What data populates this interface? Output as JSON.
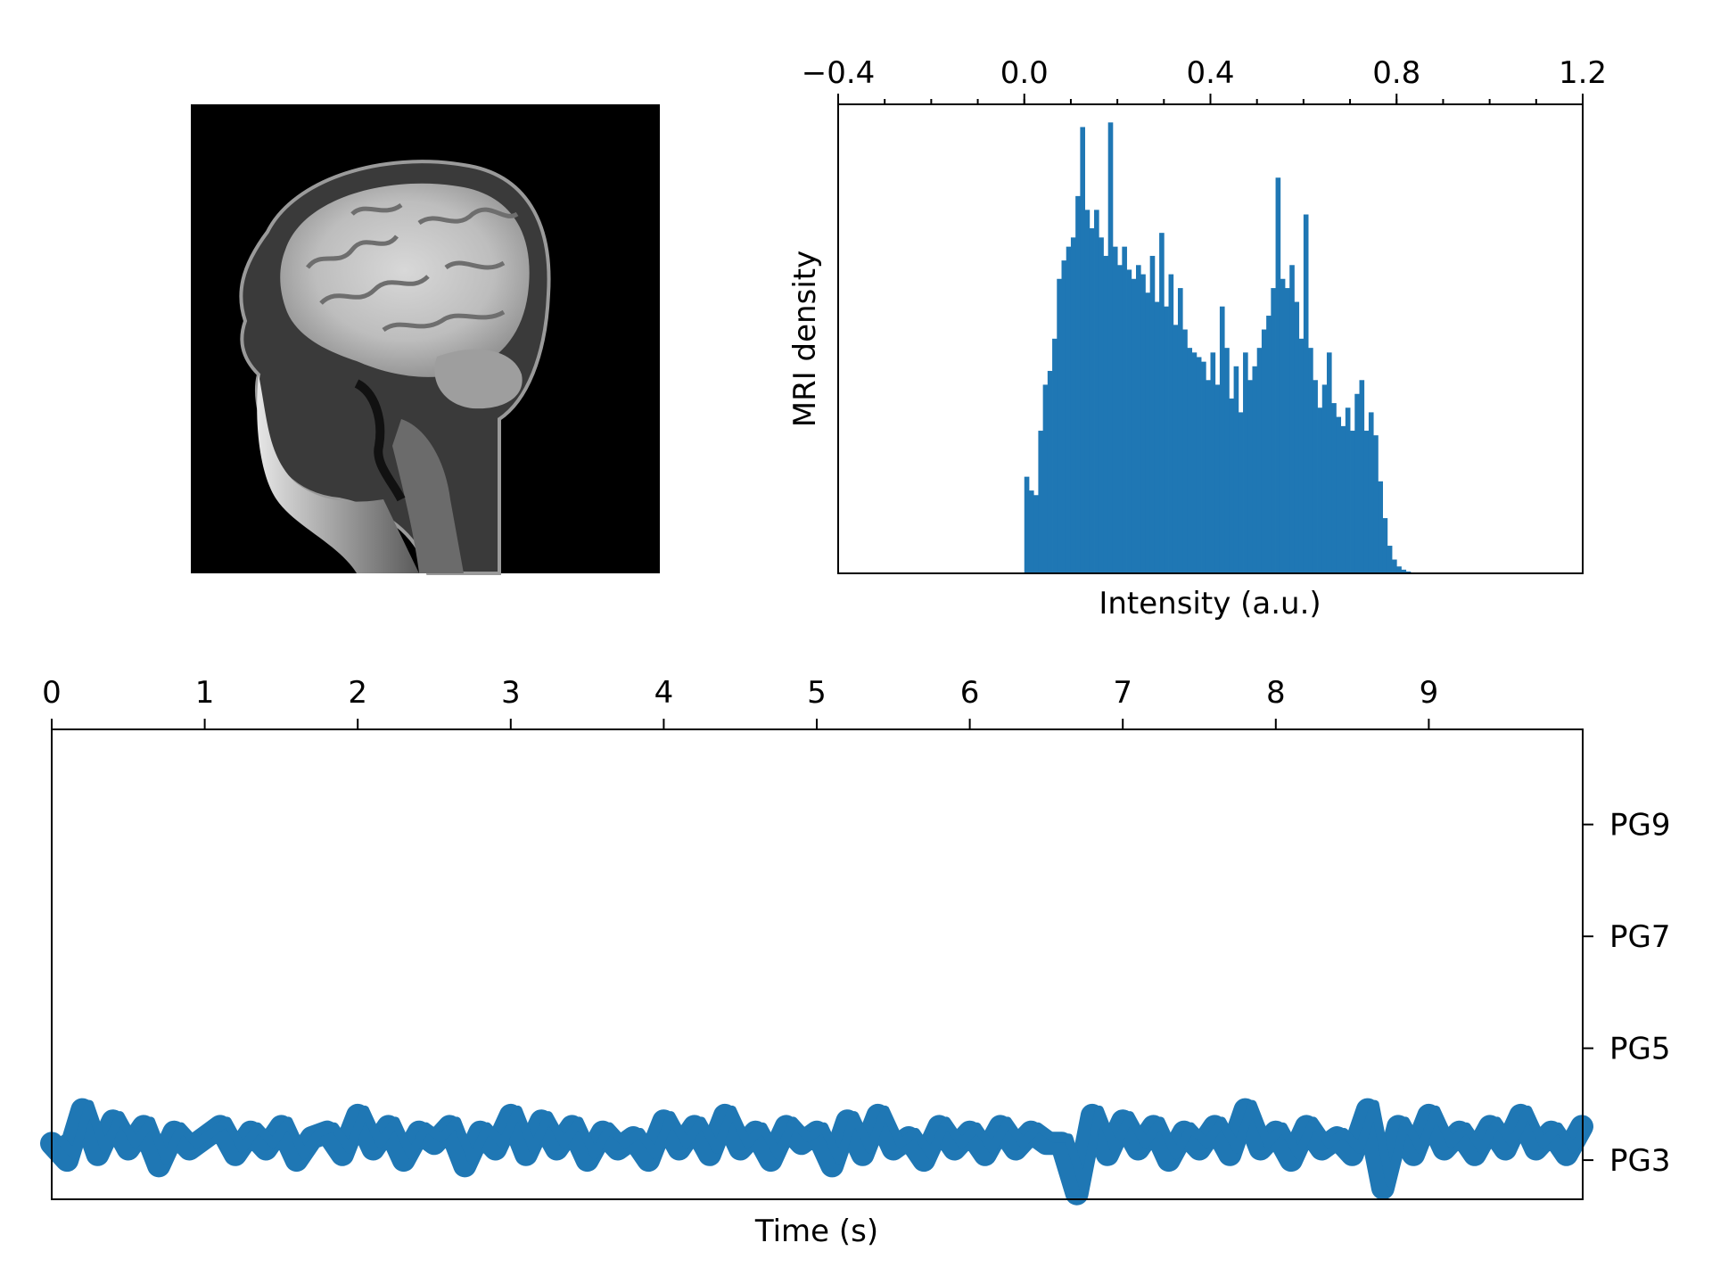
{
  "chart_data": [
    {
      "panel": "mri-image",
      "type": "image",
      "image": "sagittal-head-mri",
      "colormap": "gray"
    },
    {
      "panel": "histogram",
      "type": "bar",
      "title": "",
      "xlabel": "Intensity (a.u.)",
      "ylabel": "MRI density",
      "xlim": [
        -0.4,
        1.2
      ],
      "x_axis_position": "top",
      "x_ticks": [
        -0.4,
        0.0,
        0.4,
        0.8,
        1.2
      ],
      "x_tick_labels": [
        "−0.4",
        "0.0",
        "0.4",
        "0.8",
        "1.2"
      ],
      "y_ticks_visible": false,
      "bin_width": 0.01,
      "x": [
        0.0,
        0.01,
        0.02,
        0.03,
        0.04,
        0.05,
        0.06,
        0.07,
        0.08,
        0.09,
        0.1,
        0.11,
        0.12,
        0.13,
        0.14,
        0.15,
        0.16,
        0.17,
        0.18,
        0.19,
        0.2,
        0.21,
        0.22,
        0.23,
        0.24,
        0.25,
        0.26,
        0.27,
        0.28,
        0.29,
        0.3,
        0.31,
        0.32,
        0.33,
        0.34,
        0.35,
        0.36,
        0.37,
        0.38,
        0.39,
        0.4,
        0.41,
        0.42,
        0.43,
        0.44,
        0.45,
        0.46,
        0.47,
        0.48,
        0.49,
        0.5,
        0.51,
        0.52,
        0.53,
        0.54,
        0.55,
        0.56,
        0.57,
        0.58,
        0.59,
        0.6,
        0.61,
        0.62,
        0.63,
        0.64,
        0.65,
        0.66,
        0.67,
        0.68,
        0.69,
        0.7,
        0.71,
        0.72,
        0.73,
        0.74,
        0.75,
        0.76,
        0.77,
        0.78,
        0.79,
        0.8,
        0.81,
        0.82,
        0.83
      ],
      "values": [
        0.21,
        0.18,
        0.17,
        0.31,
        0.41,
        0.44,
        0.51,
        0.64,
        0.68,
        0.71,
        0.73,
        0.82,
        0.97,
        0.79,
        0.75,
        0.79,
        0.73,
        0.69,
        0.98,
        0.71,
        0.67,
        0.71,
        0.66,
        0.64,
        0.67,
        0.65,
        0.61,
        0.69,
        0.59,
        0.74,
        0.58,
        0.65,
        0.54,
        0.62,
        0.53,
        0.49,
        0.48,
        0.47,
        0.46,
        0.42,
        0.48,
        0.41,
        0.58,
        0.49,
        0.38,
        0.45,
        0.35,
        0.48,
        0.42,
        0.45,
        0.49,
        0.53,
        0.56,
        0.62,
        0.86,
        0.64,
        0.62,
        0.67,
        0.59,
        0.51,
        0.78,
        0.49,
        0.42,
        0.36,
        0.41,
        0.48,
        0.37,
        0.34,
        0.32,
        0.36,
        0.31,
        0.39,
        0.42,
        0.31,
        0.35,
        0.3,
        0.2,
        0.12,
        0.06,
        0.03,
        0.015,
        0.008,
        0.004,
        0.002
      ],
      "color": "#1f77b4"
    },
    {
      "panel": "time-series",
      "type": "line",
      "xlabel": "Time (s)",
      "ylabel": "",
      "xlim": [
        0,
        10
      ],
      "x_axis_position": "top",
      "x_ticks": [
        0,
        1,
        2,
        3,
        4,
        5,
        6,
        7,
        8,
        9
      ],
      "y_axis_position": "right",
      "ylim": [
        2.3,
        10.7
      ],
      "y_ticks": [
        3,
        5,
        7,
        9
      ],
      "y_tick_labels": [
        "PG3",
        "PG5",
        "PG7",
        "PG9"
      ],
      "color": "#1f77b4",
      "linewidth": "thick",
      "series": [
        {
          "x": [
            0,
            0.1,
            0.2,
            0.3,
            0.4,
            0.5,
            0.6,
            0.7,
            0.8,
            0.9,
            1.0,
            1.1,
            1.2,
            1.3,
            1.4,
            1.5,
            1.6,
            1.7,
            1.8,
            1.9,
            2.0,
            2.1,
            2.2,
            2.3,
            2.4,
            2.5,
            2.6,
            2.7,
            2.8,
            2.9,
            3.0,
            3.1,
            3.2,
            3.3,
            3.4,
            3.5,
            3.6,
            3.7,
            3.8,
            3.9,
            4.0,
            4.1,
            4.2,
            4.3,
            4.4,
            4.5,
            4.6,
            4.7,
            4.8,
            4.9,
            5.0,
            5.1,
            5.2,
            5.3,
            5.4,
            5.5,
            5.6,
            5.7,
            5.8,
            5.9,
            6.0,
            6.1,
            6.2,
            6.3,
            6.4,
            6.5,
            6.6,
            6.7,
            6.8,
            6.9,
            7.0,
            7.1,
            7.2,
            7.3,
            7.4,
            7.5,
            7.6,
            7.7,
            7.8,
            7.9,
            8.0,
            8.1,
            8.2,
            8.3,
            8.4,
            8.5,
            8.6,
            8.7,
            8.8,
            8.9,
            9.0,
            9.1,
            9.2,
            9.3,
            9.4,
            9.5,
            9.6,
            9.7,
            9.8,
            9.9,
            10.0
          ],
          "y": [
            3.3,
            3.0,
            3.9,
            3.1,
            3.7,
            3.2,
            3.6,
            2.9,
            3.5,
            3.2,
            3.4,
            3.6,
            3.1,
            3.5,
            3.2,
            3.6,
            3.0,
            3.4,
            3.5,
            3.1,
            3.8,
            3.2,
            3.6,
            3.0,
            3.5,
            3.3,
            3.6,
            2.9,
            3.5,
            3.2,
            3.8,
            3.1,
            3.7,
            3.2,
            3.6,
            3.0,
            3.5,
            3.2,
            3.4,
            3.0,
            3.7,
            3.2,
            3.6,
            3.1,
            3.8,
            3.2,
            3.5,
            3.0,
            3.6,
            3.3,
            3.5,
            2.9,
            3.7,
            3.1,
            3.8,
            3.2,
            3.4,
            3.0,
            3.6,
            3.2,
            3.5,
            3.1,
            3.6,
            3.2,
            3.5,
            3.3,
            3.3,
            2.4,
            3.8,
            3.1,
            3.7,
            3.2,
            3.6,
            3.0,
            3.5,
            3.2,
            3.6,
            3.1,
            3.9,
            3.2,
            3.5,
            3.0,
            3.6,
            3.2,
            3.4,
            3.1,
            3.9,
            2.5,
            3.6,
            3.1,
            3.8,
            3.2,
            3.5,
            3.1,
            3.6,
            3.2,
            3.8,
            3.2,
            3.5,
            3.1,
            3.6
          ]
        }
      ]
    }
  ]
}
